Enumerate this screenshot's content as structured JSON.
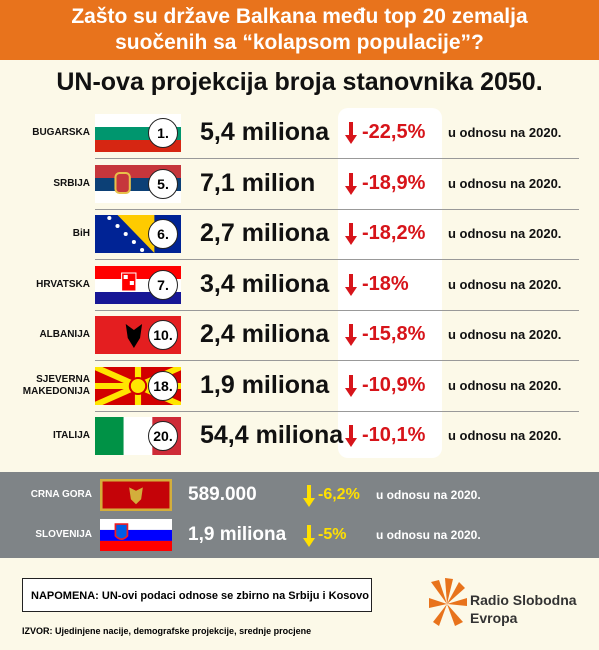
{
  "header": {
    "title_lines": [
      "Zašto su države Balkana među top 20 zemalja",
      "suočenih sa “kolapsom populacije”?"
    ]
  },
  "subtitle": "UN-ova projekcija broja stanovnika 2050.",
  "rows": [
    {
      "country": "BUGARSKA",
      "rank": "1.",
      "population": "5,4 miliona",
      "change": "-22,5%",
      "note": "u odnosu na 2020."
    },
    {
      "country": "SRBIJA",
      "rank": "5.",
      "population": "7,1 milion",
      "change": "-18,9%",
      "note": "u odnosu na 2020."
    },
    {
      "country": "BiH",
      "rank": "6.",
      "population": "2,7 miliona",
      "change": "-18,2%",
      "note": "u odnosu na 2020."
    },
    {
      "country": "HRVATSKA",
      "rank": "7.",
      "population": "3,4 miliona",
      "change": "-18%",
      "note": "u odnosu na 2020."
    },
    {
      "country": "ALBANIJA",
      "rank": "10.",
      "population": "2,4 miliona",
      "change": "-15,8%",
      "note": "u odnosu na 2020."
    },
    {
      "country": "SJEVERNA MAKEDONIJA",
      "rank": "18.",
      "population": "1,9 miliona",
      "change": "-10,9%",
      "note": "u odnosu na 2020."
    },
    {
      "country": "ITALIJA",
      "rank": "20.",
      "population": "54,4 miliona",
      "change": "-10,1%",
      "note": "u odnosu na 2020."
    }
  ],
  "others": [
    {
      "country": "CRNA GORA",
      "population": "589.000",
      "change": "-6,2%",
      "note": "u odnosu na 2020."
    },
    {
      "country": "SLOVENIJA",
      "population": "1,9 miliona",
      "change": "-5%",
      "note": "u odnosu na 2020."
    }
  ],
  "note": "NAPOMENA: UN-ovi podaci odnose se zbirno na Srbiju i Kosovo",
  "source": "IZVOR: Ujedinjene nacije, demografske projekcije, srednje procjene",
  "logo": {
    "lines": [
      "Radio Slobodna",
      "Evropa"
    ]
  }
}
